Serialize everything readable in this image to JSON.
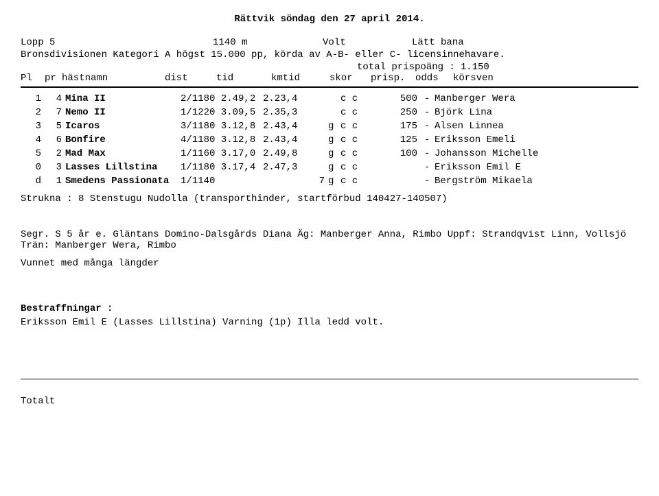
{
  "header": {
    "title": "Rättvik  söndag den 27 april 2014.",
    "race_label": "Lopp 5",
    "distance": "1140 m",
    "start_type": "Volt",
    "track_condition": "Lätt bana",
    "division_line": "Bronsdivisionen Kategori A högst 15.000 pp, körda av A-B- eller C- licensinnehavare.",
    "total_prize_label": "total prispoäng :",
    "total_prize_value": "1.150"
  },
  "col_headers": {
    "pl": "Pl",
    "pr": "pr",
    "name": "hästnamn",
    "dist": "dist",
    "tid": "tid",
    "kmtid": "kmtid",
    "skor": "skor",
    "prisp": "prisp.",
    "odds": "odds",
    "driver": "körsven"
  },
  "results": [
    {
      "pl": "1",
      "pr": "4",
      "name": "Mina II",
      "dist": "2/1180 2.49,2",
      "span": "2.23,4",
      "skor": "",
      "g": "",
      "cc": "c c",
      "prize": "500",
      "dash": "-",
      "driver": "Manberger Wera"
    },
    {
      "pl": "2",
      "pr": "7",
      "name": "Nemo II",
      "dist": "1/1220 3.09,5",
      "span": "2.35,3",
      "skor": "",
      "g": "",
      "cc": "c c",
      "prize": "250",
      "dash": "-",
      "driver": "Björk Lina"
    },
    {
      "pl": "3",
      "pr": "5",
      "name": "Icaros",
      "dist": "3/1180 3.12,8",
      "span": "2.43,4",
      "skor": "",
      "g": "g",
      "cc": "c c",
      "prize": "175",
      "dash": "-",
      "driver": "Alsen Linnea"
    },
    {
      "pl": "4",
      "pr": "6",
      "name": "Bonfire",
      "dist": "4/1180 3.12,8",
      "span": "2.43,4",
      "skor": "",
      "g": "g",
      "cc": "c c",
      "prize": "125",
      "dash": "-",
      "driver": "Eriksson Emeli"
    },
    {
      "pl": "5",
      "pr": "2",
      "name": "Mad Max",
      "dist": "1/1160 3.17,0",
      "span": "2.49,8",
      "skor": "",
      "g": "g",
      "cc": "c c",
      "prize": "100",
      "dash": "-",
      "driver": "Johansson Michelle"
    },
    {
      "pl": "0",
      "pr": "3",
      "name": "Lasses Lillstina",
      "dist": "1/1180 3.17,4",
      "span": "2.47,3",
      "skor": "",
      "g": "g",
      "cc": "c c",
      "prize": "",
      "dash": "-",
      "driver": "Eriksson Emil E"
    },
    {
      "pl": "d",
      "pr": "1",
      "name": "Smedens Passionata",
      "dist": "1/1140",
      "span": "",
      "skor": "7",
      "g": "g",
      "cc": "c c",
      "prize": "",
      "dash": "-",
      "driver": "Bergström Mikaela"
    }
  ],
  "scratched": "Strukna : 8 Stenstugu Nudolla (transporthinder, startförbud 140427-140507)",
  "winner_text": "Segr. S 5 år e. Gläntans Domino-Dalsgårds Diana Äg: Manberger Anna, Rimbo Uppf: Strandqvist Linn, Vollsjö Trän: Manberger Wera, Rimbo",
  "won_by": "Vunnet med många längder",
  "penalties_label": "Bestraffningar :",
  "penalties_text": "Eriksson Emil E (Lasses Lillstina)  Varning (1p)  Illa ledd volt.",
  "footer": "Totalt"
}
